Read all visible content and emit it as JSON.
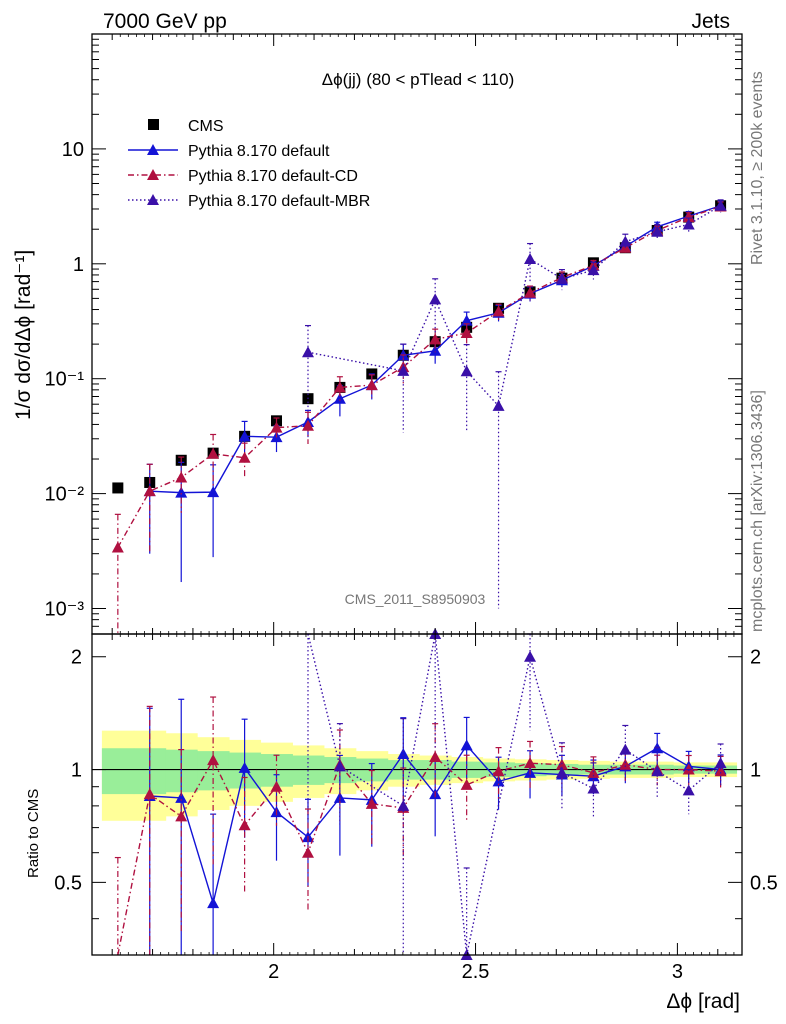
{
  "header": {
    "left": "7000 GeV pp",
    "right": "Jets",
    "side_top": "Rivet 3.1.10, ≥ 200k events",
    "side_bottom": "mcplots.cern.ch [arXiv:1306.3436]",
    "watermark": "CMS_2011_S8950903"
  },
  "chart_data": {
    "type": "line",
    "title": "Δϕ(jj) (80 < pTlead <  110)",
    "xlabel": "Δϕ [rad]",
    "ylabel": "1/σ dσ/dΔϕ [rad⁻¹]",
    "ratio_ylabel": "Ratio to CMS",
    "xlim": [
      1.55,
      3.16
    ],
    "ylim": [
      0.0006,
      100
    ],
    "yscale": "log",
    "ratio_ylim": [
      0.32,
      2.3
    ],
    "ratio_yscale": "log",
    "x_ticks": [
      2,
      2.5,
      3
    ],
    "x_tick_labels": [
      "2",
      "2.5",
      "3"
    ],
    "y_ticks": [
      0.001,
      0.01,
      0.1,
      1,
      10
    ],
    "y_tick_labels": [
      "10⁻³",
      "10⁻²",
      "10⁻¹",
      "1",
      "10"
    ],
    "ratio_y_ticks": [
      0.5,
      1,
      2
    ],
    "ratio_y_tick_labels": [
      "0.5",
      "1",
      "2"
    ],
    "legend_position": "top-left",
    "x": [
      1.614,
      1.693,
      1.771,
      1.85,
      1.928,
      2.007,
      2.085,
      2.164,
      2.243,
      2.321,
      2.4,
      2.478,
      2.557,
      2.635,
      2.714,
      2.792,
      2.871,
      2.95,
      3.028,
      3.107
    ],
    "series": [
      {
        "name": "CMS",
        "color": "#000000",
        "marker": "square",
        "line": "none",
        "values": [
          0.0112,
          0.0125,
          0.0195,
          0.0225,
          0.0315,
          0.043,
          0.067,
          0.084,
          0.11,
          0.16,
          0.21,
          0.28,
          0.41,
          0.57,
          0.75,
          1.02,
          1.38,
          1.95,
          2.55,
          3.2
        ]
      },
      {
        "name": "Pythia 8.170 default",
        "color": "#1313d6",
        "marker": "triangle",
        "line": "solid",
        "values": [
          null,
          0.0105,
          0.0102,
          0.0103,
          0.0315,
          0.031,
          0.042,
          0.067,
          0.088,
          0.16,
          0.175,
          0.32,
          0.375,
          0.55,
          0.72,
          0.96,
          1.42,
          2.1,
          2.6,
          3.2
        ],
        "errors": [
          null,
          0.0075,
          0.0085,
          0.0075,
          0.011,
          0.008,
          0.011,
          0.02,
          0.022,
          0.04,
          0.04,
          0.06,
          0.06,
          0.08,
          0.09,
          0.1,
          0.14,
          0.2,
          0.25,
          0.3
        ],
        "ratio": [
          null,
          0.85,
          0.84,
          0.44,
          1.01,
          0.77,
          0.66,
          0.84,
          0.83,
          1.1,
          0.86,
          1.16,
          0.93,
          0.98,
          0.97,
          0.96,
          1.02,
          1.14,
          1.02,
          1.0
        ]
      },
      {
        "name": "Pythia 8.170 default-CD",
        "color": "#b01040",
        "marker": "triangle",
        "line": "dashdot",
        "values": [
          0.0034,
          0.0105,
          0.0138,
          0.0222,
          0.0205,
          0.0375,
          0.039,
          0.084,
          0.088,
          0.126,
          0.22,
          0.25,
          0.385,
          0.56,
          0.76,
          0.97,
          1.38,
          1.95,
          2.55,
          3.15
        ],
        "errors": [
          0.0032,
          0.0075,
          0.007,
          0.0105,
          0.007,
          0.008,
          0.012,
          0.02,
          0.02,
          0.035,
          0.05,
          0.05,
          0.06,
          0.08,
          0.09,
          0.1,
          0.13,
          0.18,
          0.23,
          0.3
        ],
        "ratio": [
          0.3,
          0.86,
          0.75,
          1.06,
          0.71,
          0.9,
          0.6,
          1.03,
          0.81,
          0.79,
          1.08,
          0.91,
          0.99,
          1.04,
          1.03,
          0.98,
          1.03,
          1.0,
          1.0,
          0.99
        ]
      },
      {
        "name": "Pythia 8.170 default-MBR",
        "color": "#3a10a8",
        "marker": "triangle",
        "line": "dotted",
        "values": [
          null,
          null,
          null,
          null,
          null,
          null,
          0.17,
          null,
          null,
          0.117,
          0.49,
          0.116,
          0.058,
          1.1,
          0.74,
          0.88,
          1.56,
          1.9,
          2.2,
          3.2
        ],
        "errors": [
          null,
          null,
          null,
          null,
          null,
          null,
          0.12,
          null,
          null,
          0.083,
          0.25,
          0.082,
          0.057,
          0.4,
          0.15,
          0.15,
          0.25,
          0.3,
          0.3,
          0.4
        ],
        "ratio": [
          null,
          null,
          null,
          null,
          null,
          null,
          2.5,
          1.02,
          null,
          0.8,
          2.3,
          0.32,
          null,
          2.0,
          0.98,
          0.89,
          1.13,
          0.99,
          0.88,
          1.04
        ]
      }
    ],
    "bands": {
      "stat": [
        0.14,
        0.14,
        0.13,
        0.12,
        0.11,
        0.1,
        0.09,
        0.08,
        0.07,
        0.06,
        0.06,
        0.05,
        0.045,
        0.04,
        0.035,
        0.03,
        0.03,
        0.03,
        0.025,
        0.025
      ],
      "total": [
        0.27,
        0.27,
        0.25,
        0.22,
        0.2,
        0.18,
        0.16,
        0.14,
        0.12,
        0.1,
        0.09,
        0.08,
        0.07,
        0.065,
        0.06,
        0.055,
        0.05,
        0.05,
        0.045,
        0.045
      ]
    }
  }
}
